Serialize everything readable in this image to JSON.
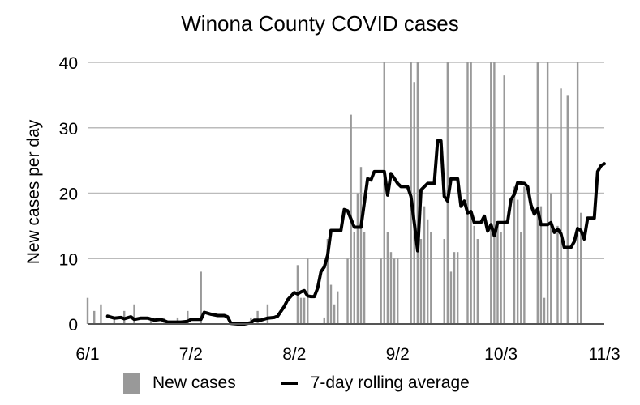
{
  "chart_data": {
    "type": "bar",
    "title": "Winona County COVID cases",
    "xlabel": "",
    "ylabel": "New cases per day",
    "ylim": [
      0,
      40
    ],
    "yticks": [
      0,
      10,
      20,
      30,
      40
    ],
    "xticks": [
      {
        "label": "6/1",
        "day": 0
      },
      {
        "label": "7/2",
        "day": 31
      },
      {
        "label": "8/2",
        "day": 62
      },
      {
        "label": "9/2",
        "day": 93
      },
      {
        "label": "10/3",
        "day": 124
      },
      {
        "label": "11/3",
        "day": 155
      }
    ],
    "grid": true,
    "legend_position": "bottom",
    "colors": {
      "bars": "#999999",
      "line": "#000000",
      "grid": "#bbbbbb",
      "axis": "#555555"
    },
    "series": [
      {
        "name": "New cases",
        "type": "bar",
        "values": [
          4,
          0,
          2,
          0,
          3,
          0,
          0,
          0,
          1,
          0,
          0,
          2,
          0,
          0,
          3,
          0,
          0,
          0,
          0,
          1,
          0,
          0,
          0,
          1,
          0,
          0,
          0,
          1,
          0,
          0,
          2,
          0,
          0,
          0,
          8,
          0,
          0,
          0,
          0,
          0,
          0,
          0,
          0,
          0,
          0,
          0,
          0,
          0,
          0,
          1,
          0,
          2,
          0,
          0,
          3,
          0,
          0,
          0,
          0,
          0,
          0,
          0,
          0,
          9,
          4,
          4,
          10,
          0,
          0,
          0,
          0,
          1,
          13,
          6,
          3,
          5,
          0,
          0,
          10,
          32,
          14,
          20,
          24,
          14,
          0,
          0,
          0,
          0,
          10,
          40,
          14,
          11,
          10,
          10,
          0,
          0,
          0,
          40,
          37,
          40,
          13,
          18,
          16,
          14,
          0,
          0,
          0,
          13,
          40,
          8,
          11,
          11,
          0,
          0,
          40,
          40,
          15,
          13,
          0,
          0,
          0,
          40,
          40,
          15,
          14,
          38,
          0,
          0,
          21,
          19,
          14,
          21,
          0,
          0,
          0,
          40,
          18,
          4,
          40,
          20,
          0,
          15,
          36,
          0,
          35,
          0,
          0,
          40,
          17,
          0,
          0,
          0,
          0,
          0,
          0,
          0,
          0,
          0,
          0
        ],
        "values_note": "approximate per-day counts read from bars; bars clipped at 40"
      },
      {
        "name": "7-day rolling average",
        "type": "line",
        "points": [
          [
            6,
            1.2
          ],
          [
            8,
            0.9
          ],
          [
            10,
            1.0
          ],
          [
            11,
            0.8
          ],
          [
            13,
            1.1
          ],
          [
            14,
            0.7
          ],
          [
            16,
            0.9
          ],
          [
            18,
            0.9
          ],
          [
            20,
            0.6
          ],
          [
            22,
            0.7
          ],
          [
            24,
            0.3
          ],
          [
            26,
            0.3
          ],
          [
            28,
            0.3
          ],
          [
            30,
            0.4
          ],
          [
            31,
            0.7
          ],
          [
            33,
            0.7
          ],
          [
            34,
            0.7
          ],
          [
            35,
            1.8
          ],
          [
            37,
            1.5
          ],
          [
            39,
            1.3
          ],
          [
            41,
            1.3
          ],
          [
            42,
            1.1
          ],
          [
            43,
            0.1
          ],
          [
            45,
            0.0
          ],
          [
            47,
            0.0
          ],
          [
            49,
            0.2
          ],
          [
            50,
            0.6
          ],
          [
            52,
            0.6
          ],
          [
            54,
            0.9
          ],
          [
            56,
            1.0
          ],
          [
            57,
            1.2
          ],
          [
            59,
            2.7
          ],
          [
            60,
            3.7
          ],
          [
            62,
            4.8
          ],
          [
            63,
            4.6
          ],
          [
            64,
            4.9
          ],
          [
            65,
            5.1
          ],
          [
            66,
            4.3
          ],
          [
            67,
            4.2
          ],
          [
            68,
            4.2
          ],
          [
            69,
            5.5
          ],
          [
            70,
            8.0
          ],
          [
            71,
            8.7
          ],
          [
            72,
            10.5
          ],
          [
            73,
            14.3
          ],
          [
            75,
            14.3
          ],
          [
            76,
            14.3
          ],
          [
            77,
            17.5
          ],
          [
            78,
            17.3
          ],
          [
            80,
            14.8
          ],
          [
            81,
            14.8
          ],
          [
            82,
            14.8
          ],
          [
            84,
            22.2
          ],
          [
            85,
            22.0
          ],
          [
            86,
            23.3
          ],
          [
            88,
            23.3
          ],
          [
            89,
            23.3
          ],
          [
            90,
            19.7
          ],
          [
            91,
            23.0
          ],
          [
            93,
            21.5
          ],
          [
            94,
            21.0
          ],
          [
            96,
            21.0
          ],
          [
            97,
            19.5
          ],
          [
            98,
            15.5
          ],
          [
            99,
            11.2
          ],
          [
            100,
            20.5
          ],
          [
            101,
            21.0
          ],
          [
            102,
            21.5
          ],
          [
            104,
            21.5
          ],
          [
            105,
            28.0
          ],
          [
            106,
            28.0
          ],
          [
            107,
            19.5
          ],
          [
            108,
            18.8
          ],
          [
            109,
            22.2
          ],
          [
            111,
            22.2
          ],
          [
            112,
            18.0
          ],
          [
            113,
            18.8
          ],
          [
            114,
            17.0
          ],
          [
            115,
            17.2
          ],
          [
            116,
            15.5
          ],
          [
            118,
            15.5
          ],
          [
            119,
            16.5
          ],
          [
            120,
            14.2
          ],
          [
            121,
            15.2
          ],
          [
            122,
            13.5
          ],
          [
            123,
            15.5
          ],
          [
            125,
            15.5
          ],
          [
            126,
            15.6
          ],
          [
            127,
            19.0
          ],
          [
            128,
            19.8
          ],
          [
            129,
            21.6
          ],
          [
            131,
            21.5
          ],
          [
            132,
            21.0
          ],
          [
            133,
            18.2
          ],
          [
            134,
            16.8
          ],
          [
            135,
            17.6
          ],
          [
            136,
            15.2
          ],
          [
            138,
            15.2
          ],
          [
            139,
            15.5
          ],
          [
            140,
            14.0
          ],
          [
            141,
            14.5
          ],
          [
            142,
            13.8
          ],
          [
            143,
            11.7
          ],
          [
            145,
            11.7
          ],
          [
            146,
            12.6
          ],
          [
            147,
            14.6
          ],
          [
            148,
            14.3
          ],
          [
            149,
            13.0
          ],
          [
            150,
            16.2
          ],
          [
            151,
            16.2
          ],
          [
            152,
            16.2
          ],
          [
            153,
            23.3
          ],
          [
            154,
            24.2
          ],
          [
            155,
            24.5
          ]
        ]
      }
    ]
  },
  "legend": {
    "bar_label": "New cases",
    "line_label": "7-day rolling average"
  }
}
